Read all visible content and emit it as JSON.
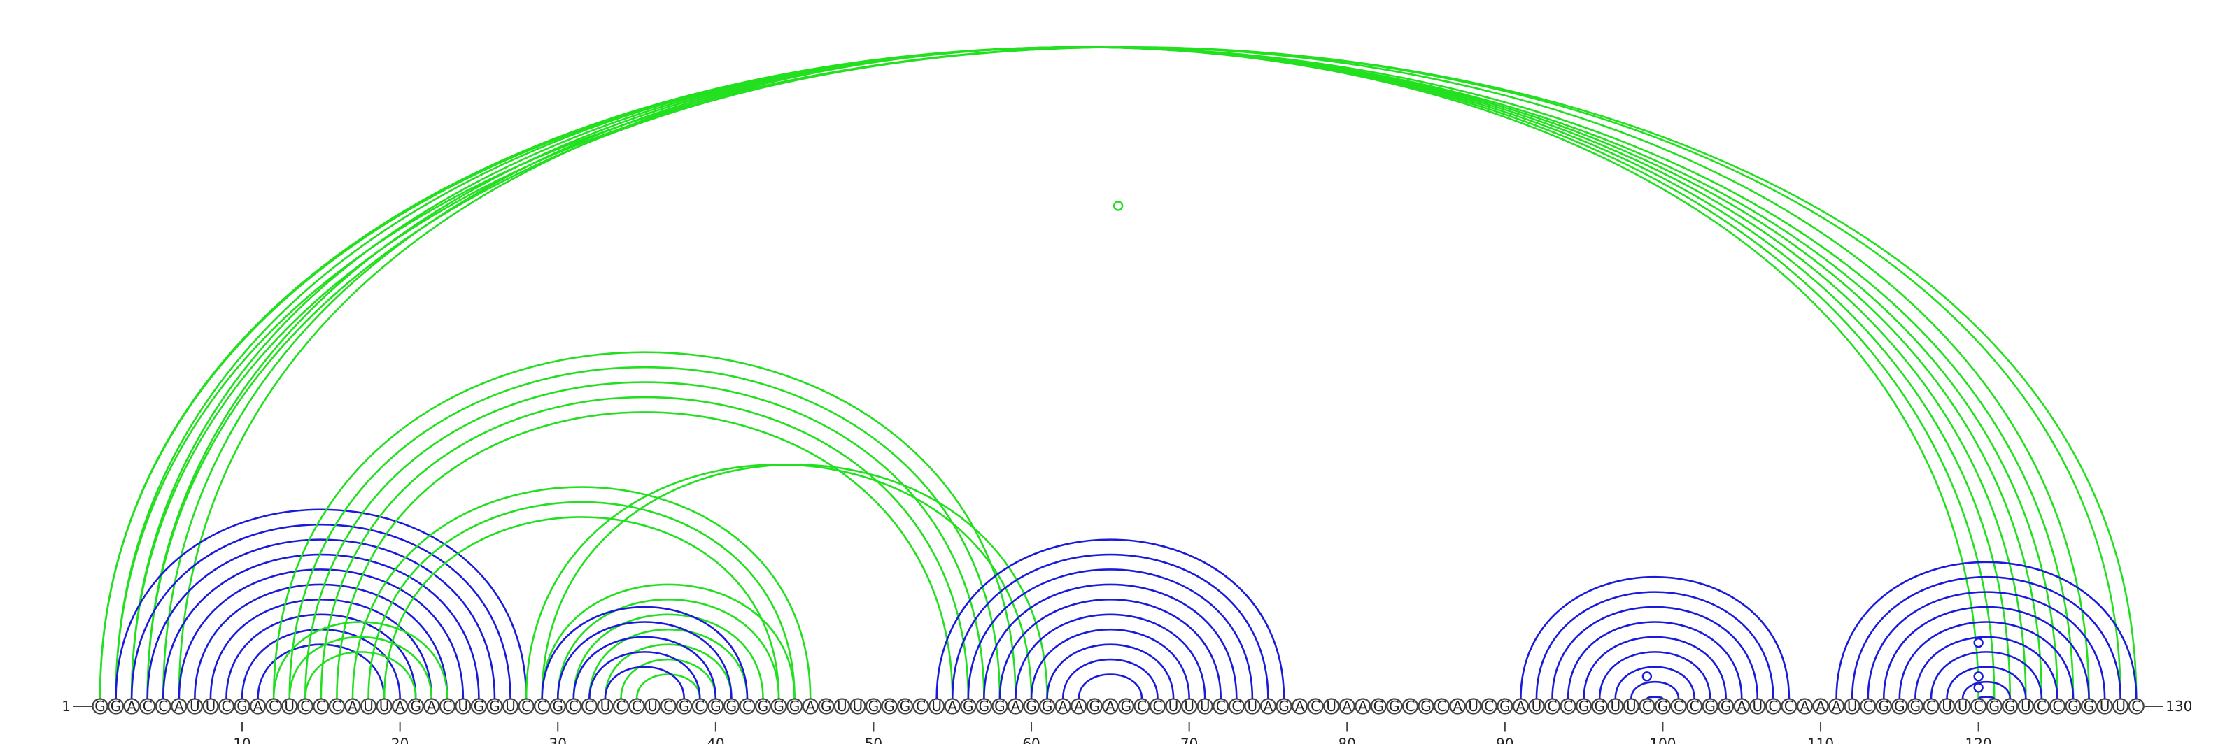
{
  "diagram": {
    "type": "rna-arc-diagram",
    "sequence": "GGACCAUUCGACUCCCAUUAGACUGGUCCGCCUCCUCGCGGCGGGAGUUGGGCUAGGGAGGAAGAGCCUUUCCUAGACUAAGGCGCAUCGAUCCGGUUCGCCGGAUCCAAAUCGGGCUUCGGUCCGGUUC",
    "start_label": "1",
    "end_label": "130",
    "ticks": [
      10,
      20,
      30,
      40,
      50,
      60,
      70,
      80,
      90,
      100,
      110,
      120
    ],
    "colors": {
      "blue_arcs": "#1a1adb",
      "green_arcs": "#22e01f",
      "nucleotide_fill": "#ffffff",
      "nucleotide_stroke": "#444444",
      "text": "#222222"
    },
    "arc_groups": [
      {
        "color": "green",
        "pairs": [
          [
            1,
            125
          ],
          [
            2,
            124
          ],
          [
            3,
            123
          ],
          [
            4,
            122
          ],
          [
            5,
            121
          ],
          [
            6,
            120
          ],
          [
            1,
            126
          ],
          [
            4,
            127
          ],
          [
            2,
            130
          ],
          [
            3,
            129
          ]
        ]
      },
      {
        "color": "blue",
        "pairs": [
          [
            2,
            28
          ],
          [
            3,
            27
          ],
          [
            4,
            26
          ],
          [
            5,
            25
          ],
          [
            6,
            24
          ],
          [
            7,
            23
          ],
          [
            8,
            22
          ],
          [
            9,
            21
          ],
          [
            10,
            20
          ],
          [
            11,
            19
          ]
        ]
      },
      {
        "color": "green",
        "pairs": [
          [
            12,
            59
          ],
          [
            13,
            58
          ],
          [
            14,
            57
          ],
          [
            15,
            56
          ],
          [
            16,
            55
          ],
          [
            17,
            46
          ],
          [
            18,
            45
          ],
          [
            19,
            44
          ],
          [
            28,
            60
          ],
          [
            29,
            61
          ]
        ]
      },
      {
        "color": "green",
        "pairs": [
          [
            12,
            23
          ],
          [
            13,
            22
          ],
          [
            14,
            21
          ]
        ]
      },
      {
        "color": "green",
        "pairs": [
          [
            29,
            45
          ],
          [
            30,
            44
          ],
          [
            31,
            43
          ],
          [
            32,
            42
          ],
          [
            33,
            41
          ],
          [
            34,
            40
          ],
          [
            35,
            39
          ]
        ]
      },
      {
        "color": "blue",
        "pairs": [
          [
            29,
            42
          ],
          [
            30,
            41
          ],
          [
            31,
            40
          ],
          [
            32,
            39
          ],
          [
            33,
            38
          ]
        ]
      },
      {
        "color": "blue",
        "pairs": [
          [
            54,
            76
          ],
          [
            55,
            75
          ],
          [
            56,
            74
          ],
          [
            57,
            73
          ],
          [
            58,
            72
          ],
          [
            59,
            71
          ],
          [
            60,
            70
          ],
          [
            61,
            69
          ],
          [
            62,
            68
          ],
          [
            63,
            67
          ]
        ]
      },
      {
        "color": "blue",
        "pairs": [
          [
            91,
            108
          ],
          [
            92,
            107
          ],
          [
            93,
            106
          ],
          [
            94,
            105
          ],
          [
            95,
            104
          ],
          [
            96,
            103
          ],
          [
            97,
            102
          ],
          [
            98,
            101
          ],
          [
            99,
            100
          ]
        ]
      },
      {
        "color": "blue",
        "pairs": [
          [
            111,
            130
          ],
          [
            112,
            129
          ],
          [
            113,
            128
          ],
          [
            114,
            127
          ],
          [
            115,
            126
          ],
          [
            116,
            125
          ],
          [
            117,
            124
          ],
          [
            118,
            123
          ],
          [
            119,
            122
          ],
          [
            120,
            121
          ]
        ]
      }
    ],
    "markers": [
      {
        "from": 1,
        "to": 130,
        "color": "green"
      },
      {
        "from": 97,
        "to": 101,
        "color": "blue"
      },
      {
        "from": 115,
        "to": 125,
        "color": "blue"
      },
      {
        "from": 118,
        "to": 122,
        "color": "blue"
      },
      {
        "from": 119,
        "to": 121,
        "color": "blue"
      }
    ]
  }
}
